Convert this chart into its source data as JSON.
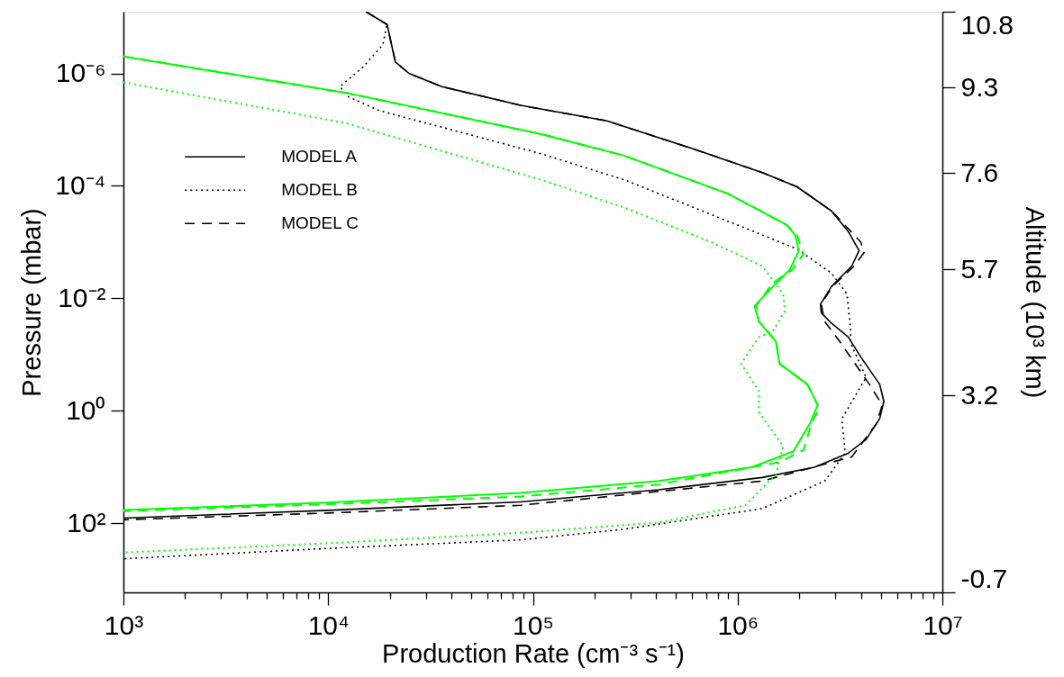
{
  "chart_data": {
    "type": "line",
    "xlabel": "Production Rate  (cm⁻³ s⁻¹)",
    "ylabel": "Pressure  (mbar)",
    "y2label": "Altitude  (10³ km)",
    "log": "xy",
    "legend": "top left",
    "xlim": [
      1000,
      10000000
    ],
    "ylim": [
      1700,
      8e-08
    ],
    "y2lim": [
      -0.7,
      10.8
    ],
    "xticks": [
      {
        "value": 1000,
        "label": "10³"
      },
      {
        "value": 2000,
        "label": null
      },
      {
        "value": 3000,
        "label": null
      },
      {
        "value": 4000,
        "label": null
      },
      {
        "value": 5000,
        "label": null
      },
      {
        "value": 6000,
        "label": null
      },
      {
        "value": 7000,
        "label": null
      },
      {
        "value": 8000,
        "label": null
      },
      {
        "value": 9000,
        "label": null
      },
      {
        "value": 10000,
        "label": "10⁴"
      },
      {
        "value": 20000,
        "label": null
      },
      {
        "value": 30000,
        "label": null
      },
      {
        "value": 40000,
        "label": null
      },
      {
        "value": 50000,
        "label": null
      },
      {
        "value": 60000,
        "label": null
      },
      {
        "value": 70000,
        "label": null
      },
      {
        "value": 80000,
        "label": null
      },
      {
        "value": 90000,
        "label": null
      },
      {
        "value": 100000,
        "label": "10⁵"
      },
      {
        "value": 200000,
        "label": null
      },
      {
        "value": 300000,
        "label": null
      },
      {
        "value": 400000,
        "label": null
      },
      {
        "value": 500000,
        "label": null
      },
      {
        "value": 600000,
        "label": null
      },
      {
        "value": 700000,
        "label": null
      },
      {
        "value": 800000,
        "label": null
      },
      {
        "value": 900000,
        "label": null
      },
      {
        "value": 1000000,
        "label": "10⁶"
      },
      {
        "value": 2000000,
        "label": null
      },
      {
        "value": 3000000,
        "label": null
      },
      {
        "value": 4000000,
        "label": null
      },
      {
        "value": 5000000,
        "label": null
      },
      {
        "value": 6000000,
        "label": null
      },
      {
        "value": 7000000,
        "label": null
      },
      {
        "value": 8000000,
        "label": null
      },
      {
        "value": 9000000,
        "label": null
      },
      {
        "value": 10000000,
        "label": "10⁷"
      }
    ],
    "yticks": [
      {
        "value": 1e-06,
        "label": "10⁻⁶"
      },
      {
        "value": 0.0001,
        "label": "10⁻⁴"
      },
      {
        "value": 0.01,
        "label": "10⁻²"
      },
      {
        "value": 1,
        "label": "10⁰"
      },
      {
        "value": 100,
        "label": "10²"
      }
    ],
    "y2ticks": [
      10.8,
      9.3,
      7.6,
      5.7,
      3.2,
      -0.7
    ],
    "series": [
      {
        "name": "MODEL A",
        "color": "#000000",
        "line_style": "solid",
        "x": [
          15300,
          19400,
          21300,
          24800,
          35900,
          87100,
          230000,
          605000,
          1320000,
          1950000,
          2870000,
          3470000,
          3920000,
          3610000,
          2870000,
          2540000,
          2560000,
          2870000,
          3470000,
          3990000,
          4940000,
          5180000,
          4940000,
          4240000,
          3470000,
          2370000,
          1320000,
          411000,
          87100,
          10000,
          1000
        ],
        "values": [
          8e-08,
          1.35e-07,
          6.3e-07,
          1e-06,
          1.72e-06,
          3.7e-06,
          7e-06,
          2.19e-05,
          5.8e-05,
          0.000104,
          0.000279,
          0.00065,
          0.00142,
          0.00267,
          0.0062,
          0.0127,
          0.0181,
          0.0277,
          0.049,
          0.11,
          0.339,
          0.687,
          1.39,
          3.24,
          5.7,
          10.1,
          15.4,
          25.4,
          41.7,
          59,
          81
        ]
      },
      {
        "name": "MODEL B",
        "color": "#000000",
        "line_style": "dotted",
        "x": [
          19300,
          18500,
          14700,
          11400,
          12600,
          17800,
          110000,
          279000,
          896000,
          1950000,
          2870000,
          3420000,
          3560000,
          3560000,
          4240000,
          3230000,
          3350000,
          2660000,
          1320000,
          279000,
          87100,
          10000,
          1000
        ],
        "values": [
          1.44e-07,
          3.1e-07,
          7.9e-07,
          1.72e-06,
          2.62e-06,
          4.6e-06,
          2.69e-05,
          7.8e-05,
          0.000425,
          0.00133,
          0.00356,
          0.0084,
          0.0343,
          0.062,
          0.255,
          1.39,
          5.7,
          17.8,
          55,
          128,
          198,
          281,
          430
        ]
      },
      {
        "name": "MODEL C",
        "color": "#000000",
        "line_style": "dashed",
        "x": [
          15300,
          19400,
          21300,
          24800,
          35900,
          87100,
          230000,
          605000,
          1320000,
          1950000,
          2870000,
          3550000,
          3990000,
          4150000,
          3700000,
          2900000,
          2560000,
          2660000,
          3100000,
          4400000,
          5090000,
          4750000,
          3610000,
          1320000,
          87100,
          10000,
          1000
        ],
        "values": [
          8e-08,
          1.35e-07,
          6.3e-07,
          1e-06,
          1.72e-06,
          3.7e-06,
          7e-06,
          2.19e-05,
          5.8e-05,
          0.000104,
          0.000279,
          0.00063,
          0.000995,
          0.00153,
          0.00267,
          0.0062,
          0.0127,
          0.0258,
          0.054,
          0.339,
          0.79,
          1.73,
          6.6,
          17.8,
          48,
          66,
          87
        ]
      },
      {
        "color": "#00ff00",
        "line_style": "solid",
        "x": [
          1000,
          12100,
          110000,
          279000,
          896000,
          1730000,
          1910000,
          1990000,
          1800000,
          1430000,
          1210000,
          1270000,
          1540000,
          1600000,
          2190000,
          2460000,
          2270000,
          1870000,
          1170000,
          411000,
          87100,
          10000,
          1000
        ],
        "values": [
          5e-07,
          2.2e-06,
          1.2e-05,
          2.9e-05,
          0.000138,
          0.00049,
          0.00075,
          0.00142,
          0.00309,
          0.0072,
          0.0137,
          0.0258,
          0.059,
          0.145,
          0.339,
          0.79,
          1.61,
          5.3,
          10.1,
          17.8,
          29,
          43,
          58
        ]
      },
      {
        "color": "#00ff00",
        "line_style": "dotted",
        "x": [
          1000,
          12100,
          110000,
          279000,
          740000,
          1320000,
          1670000,
          1700000,
          1480000,
          1270000,
          1040000,
          1270000,
          1270000,
          1670000,
          1540000,
          1090000,
          411000,
          87100,
          10000,
          1000
        ],
        "values": [
          1.44e-06,
          7.6e-06,
          7.8e-05,
          0.000243,
          0.000995,
          0.00267,
          0.0084,
          0.0168,
          0.0394,
          0.049,
          0.145,
          0.45,
          1.05,
          4.3,
          13.4,
          48,
          97,
          148,
          227,
          333
        ]
      },
      {
        "color": "#00ff00",
        "line_style": "dashed",
        "x": [
          1000,
          12100,
          110000,
          279000,
          896000,
          1730000,
          1950000,
          2100000,
          1850000,
          1480000,
          1230000,
          1270000,
          1540000,
          1600000,
          2190000,
          2510000,
          2300000,
          2100000,
          1600000,
          411000,
          87100,
          10000,
          1000
        ],
        "values": [
          5e-07,
          2.2e-06,
          1.2e-05,
          2.9e-05,
          0.000138,
          0.00049,
          0.00075,
          0.00164,
          0.00309,
          0.0054,
          0.0137,
          0.0258,
          0.059,
          0.145,
          0.339,
          0.91,
          1.61,
          5.0,
          8.2,
          20.5,
          33.6,
          46,
          61
        ]
      }
    ]
  }
}
